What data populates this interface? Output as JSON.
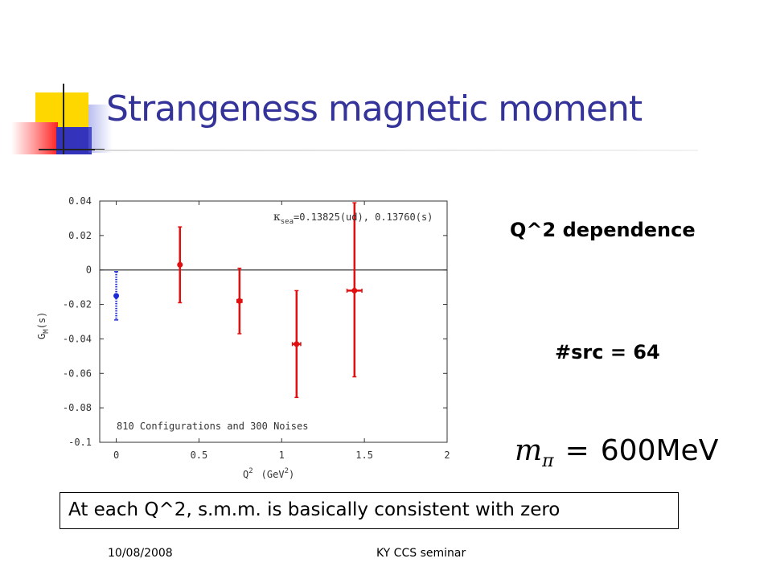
{
  "slide": {
    "title": "Strangeness magnetic moment",
    "q2_label": "Q^2 dependence",
    "src_label": "#src = 64",
    "formula": {
      "symbol": "m",
      "subscript": "π",
      "equals": "=",
      "value": "600MeV"
    },
    "conclusion": "At each Q^2, s.m.m. is basically consistent with zero",
    "footer_date": "10/08/2008",
    "footer_center": "KY CCS seminar"
  },
  "chart_data": {
    "type": "scatter",
    "xlabel_parts": {
      "base": "Q",
      "sup1": "2",
      "unit": "(GeV",
      "sup2": "2",
      "close": ")"
    },
    "ylabel_parts": {
      "base": "G",
      "sub": "M",
      "rest": "(s)"
    },
    "annotation_top": {
      "kappa": "κ",
      "sub": "sea",
      "text": "=0.13825(ud), 0.13760(s)"
    },
    "annotation_bottom": "810 Configurations and 300 Noises",
    "xlim": [
      -0.1,
      2
    ],
    "ylim": [
      -0.1,
      0.04
    ],
    "x_ticks": [
      0,
      0.5,
      1,
      1.5,
      2
    ],
    "x_tick_labels": [
      "0",
      "0.5",
      "1",
      "1.5",
      "2"
    ],
    "y_ticks": [
      0.04,
      0.02,
      0,
      -0.02,
      -0.04,
      -0.06,
      -0.08,
      -0.1
    ],
    "y_tick_labels": [
      "0.04",
      "0.02",
      "0",
      "-0.02",
      "-0.04",
      "-0.06",
      "-0.08",
      "-0.1"
    ],
    "zero_line": true,
    "series": [
      {
        "color": "#1a2bd6",
        "style": "dotted",
        "points": [
          {
            "x": 0.0,
            "y": -0.015,
            "ylow": -0.029,
            "yhigh": -0.001,
            "xerr": 0.0
          }
        ]
      },
      {
        "color": "#e01010",
        "style": "solid",
        "points": [
          {
            "x": 0.385,
            "y": 0.003,
            "ylow": -0.019,
            "yhigh": 0.025,
            "xerr": 0.0
          },
          {
            "x": 0.745,
            "y": -0.018,
            "ylow": -0.037,
            "yhigh": 0.001,
            "xerr": 0.015
          },
          {
            "x": 1.09,
            "y": -0.043,
            "ylow": -0.074,
            "yhigh": -0.012,
            "xerr": 0.025
          },
          {
            "x": 1.44,
            "y": -0.012,
            "ylow": -0.062,
            "yhigh": 0.039,
            "xerr": 0.045
          }
        ]
      }
    ]
  }
}
